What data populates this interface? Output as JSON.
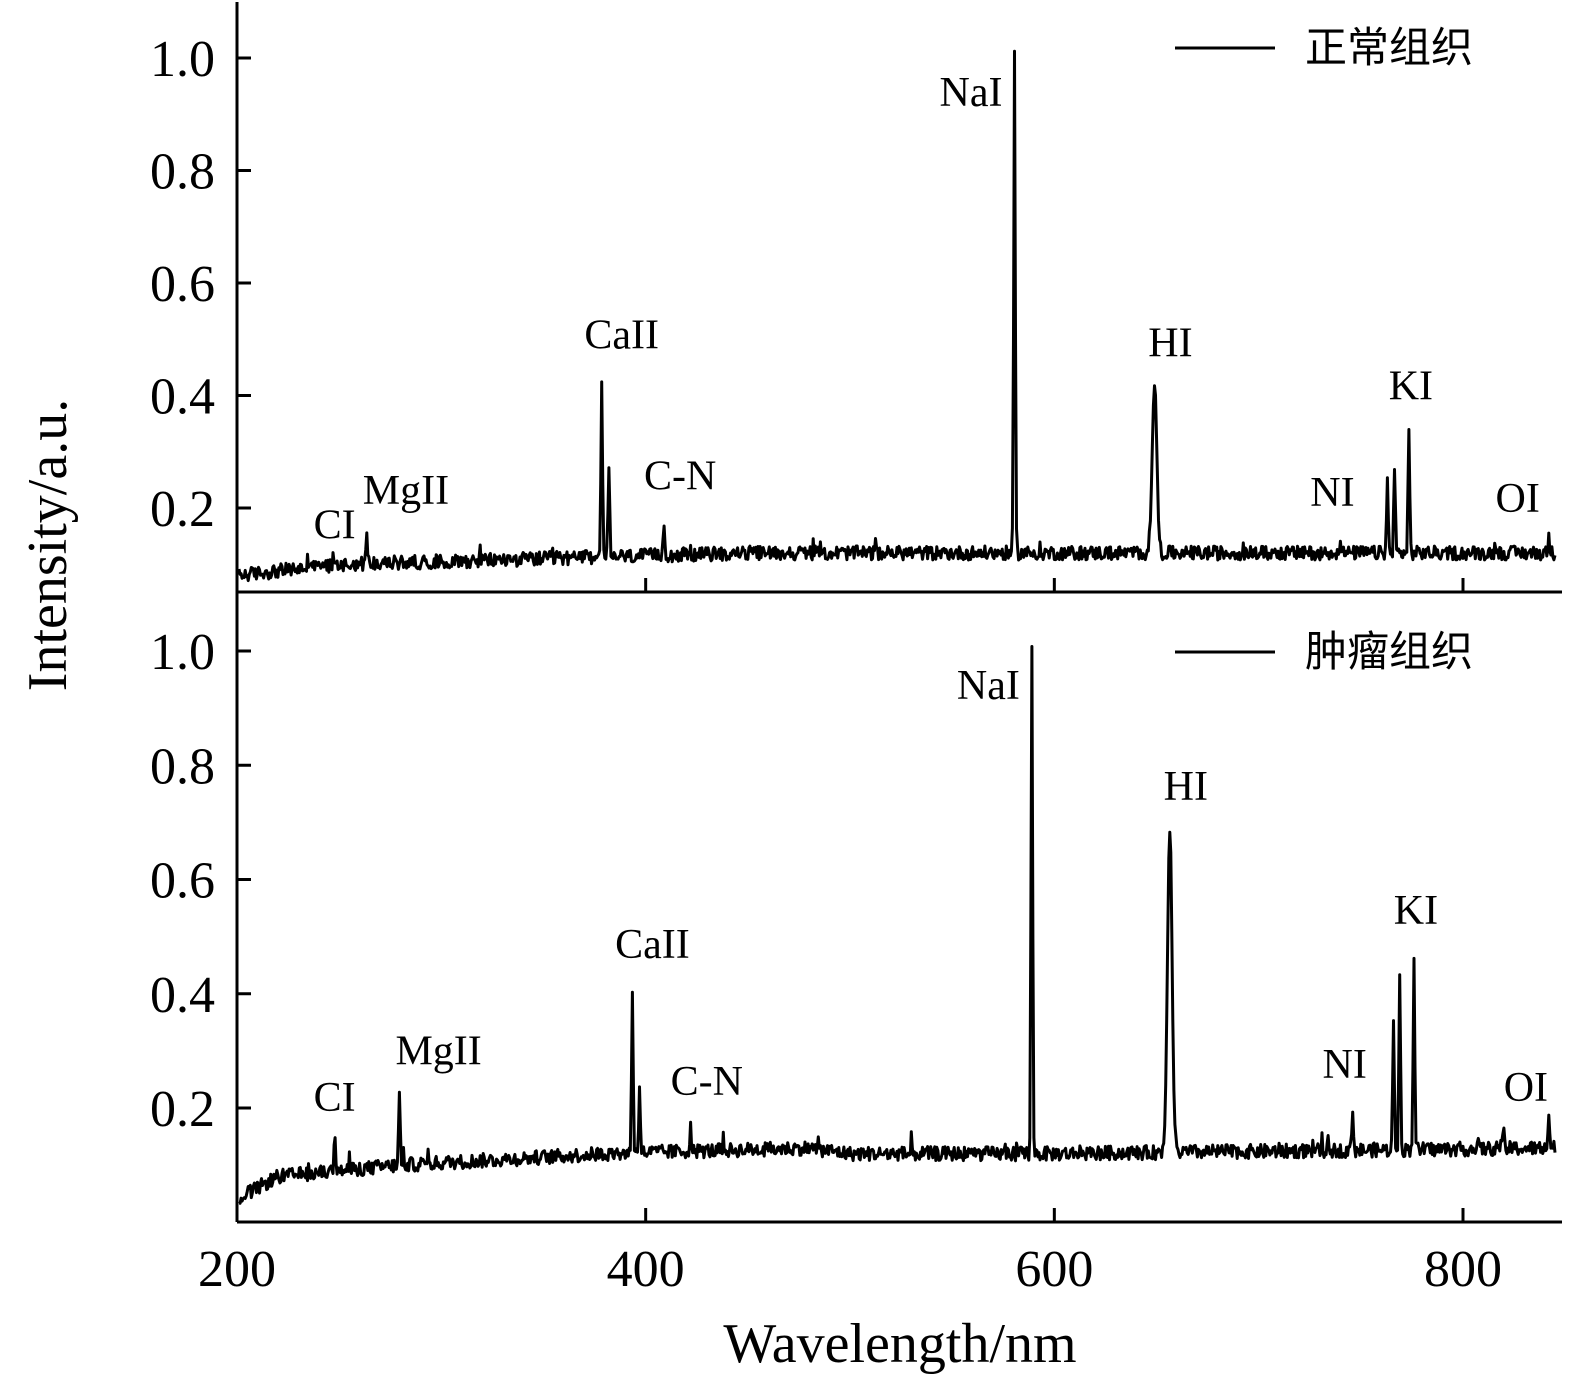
{
  "chart_data": {
    "type": "line",
    "xlabel": "Wavelength/nm",
    "ylabel": "Intensity/a.u.",
    "x_ticks": [
      200,
      400,
      600,
      800
    ],
    "xlim": [
      200,
      845
    ],
    "panels": [
      {
        "series_name": "正常组织",
        "ylim": [
          0.05,
          1.1
        ],
        "y_ticks": [
          "0.2",
          "0.4",
          "0.6",
          "0.8",
          "1.0"
        ],
        "baseline": [
          [
            200,
            0.08
          ],
          [
            250,
            0.1
          ],
          [
            350,
            0.11
          ],
          [
            450,
            0.12
          ],
          [
            560,
            0.12
          ],
          [
            700,
            0.12
          ],
          [
            845,
            0.12
          ]
        ],
        "peaks": [
          {
            "label": "CI",
            "x": 247.8,
            "y": 0.11,
            "show_label": true
          },
          {
            "label": "MgII",
            "x": 263.5,
            "y": 0.15,
            "show_label": true
          },
          {
            "label": "CaII",
            "x": 378.5,
            "y": 0.43,
            "show_label": true
          },
          {
            "label": "",
            "x": 382.0,
            "y": 0.27,
            "show_label": false
          },
          {
            "label": "C-N",
            "x": 409.0,
            "y": 0.18,
            "show_label": true
          },
          {
            "label": "NaI",
            "x": 580.5,
            "y": 1.0,
            "show_label": true
          },
          {
            "label": "HI",
            "x": 649.0,
            "y": 0.42,
            "show_label": true
          },
          {
            "label": "NI",
            "x": 740.0,
            "y": 0.15,
            "show_label": true
          },
          {
            "label": "",
            "x": 763.0,
            "y": 0.25,
            "show_label": false
          },
          {
            "label": "",
            "x": 766.5,
            "y": 0.27,
            "show_label": false
          },
          {
            "label": "KI",
            "x": 773.5,
            "y": 0.34,
            "show_label": true
          },
          {
            "label": "OI",
            "x": 816.0,
            "y": 0.14,
            "show_label": true
          },
          {
            "label": "",
            "x": 842.0,
            "y": 0.15,
            "show_label": false
          }
        ]
      },
      {
        "series_name": "肿瘤组织",
        "ylim": [
          0.02,
          1.05
        ],
        "y_ticks": [
          "0.2",
          "0.4",
          "0.6",
          "0.8",
          "1.0"
        ],
        "baseline": [
          [
            200,
            0.04
          ],
          [
            220,
            0.08
          ],
          [
            280,
            0.1
          ],
          [
            380,
            0.12
          ],
          [
            480,
            0.13
          ],
          [
            500,
            0.12
          ],
          [
            600,
            0.12
          ],
          [
            845,
            0.13
          ]
        ],
        "peaks": [
          {
            "label": "CI",
            "x": 247.8,
            "y": 0.16,
            "show_label": true
          },
          {
            "label": "MgII",
            "x": 279.5,
            "y": 0.22,
            "show_label": true
          },
          {
            "label": "CaII",
            "x": 393.5,
            "y": 0.41,
            "show_label": true
          },
          {
            "label": "",
            "x": 397.0,
            "y": 0.24,
            "show_label": false
          },
          {
            "label": "C-N",
            "x": 422.0,
            "y": 0.17,
            "show_label": true
          },
          {
            "label": "NaI",
            "x": 589.0,
            "y": 1.0,
            "show_label": true
          },
          {
            "label": "HI",
            "x": 656.5,
            "y": 0.69,
            "show_label": true
          },
          {
            "label": "NI",
            "x": 746.0,
            "y": 0.2,
            "show_label": true
          },
          {
            "label": "",
            "x": 766.0,
            "y": 0.36,
            "show_label": false
          },
          {
            "label": "",
            "x": 769.0,
            "y": 0.44,
            "show_label": false
          },
          {
            "label": "KI",
            "x": 776.0,
            "y": 0.47,
            "show_label": true
          },
          {
            "label": "OI",
            "x": 820.0,
            "y": 0.16,
            "show_label": true
          },
          {
            "label": "",
            "x": 842.0,
            "y": 0.19,
            "show_label": false
          }
        ]
      }
    ],
    "legend_position": "top-right",
    "grid": false
  }
}
